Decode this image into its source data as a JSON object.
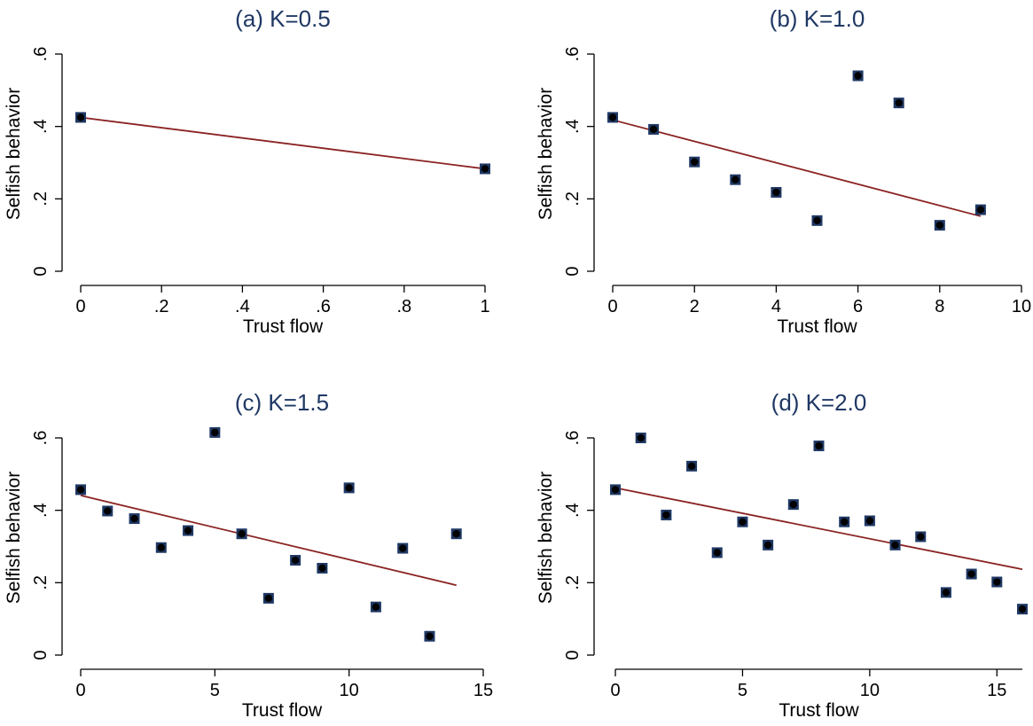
{
  "chart_data": [
    {
      "type": "scatter",
      "title": "(a) K=0.5",
      "xlabel": "Trust flow",
      "ylabel": "Selfish behavior",
      "xlim": [
        0,
        1
      ],
      "ylim": [
        0,
        0.6
      ],
      "xticks": [
        0,
        0.2,
        0.4,
        0.6,
        0.8,
        1
      ],
      "xtick_labels": [
        "0",
        ".2",
        ".4",
        ".6",
        ".8",
        "1"
      ],
      "yticks": [
        0,
        0.2,
        0.4,
        0.6
      ],
      "ytick_labels": [
        "0",
        ".2",
        ".4",
        ".6"
      ],
      "grid": false,
      "points": [
        [
          0,
          0.425
        ],
        [
          1,
          0.283
        ]
      ],
      "fit_line": [
        [
          0,
          0.425
        ],
        [
          1,
          0.283
        ]
      ]
    },
    {
      "type": "scatter",
      "title": "(b) K=1.0",
      "xlabel": "Trust flow",
      "ylabel": "Selfish behavior",
      "xlim": [
        0,
        10
      ],
      "ylim": [
        0,
        0.6
      ],
      "xticks": [
        0,
        2,
        4,
        6,
        8,
        10
      ],
      "xtick_labels": [
        "0",
        "2",
        "4",
        "6",
        "8",
        "10"
      ],
      "yticks": [
        0,
        0.2,
        0.4,
        0.6
      ],
      "ytick_labels": [
        "0",
        ".2",
        ".4",
        ".6"
      ],
      "grid": false,
      "points": [
        [
          0,
          0.425
        ],
        [
          1,
          0.392
        ],
        [
          2,
          0.302
        ],
        [
          3,
          0.253
        ],
        [
          4,
          0.218
        ],
        [
          5,
          0.14
        ],
        [
          6,
          0.54
        ],
        [
          7,
          0.465
        ],
        [
          8,
          0.127
        ],
        [
          9,
          0.17
        ]
      ],
      "fit_line": [
        [
          0,
          0.418
        ],
        [
          9,
          0.152
        ]
      ]
    },
    {
      "type": "scatter",
      "title": "(c) K=1.5",
      "xlabel": "Trust flow",
      "ylabel": "Selfish behavior",
      "xlim": [
        0,
        15
      ],
      "ylim": [
        0,
        0.6
      ],
      "xticks": [
        0,
        5,
        10,
        15
      ],
      "xtick_labels": [
        "0",
        "5",
        "10",
        "15"
      ],
      "yticks": [
        0,
        0.2,
        0.4,
        0.6
      ],
      "ytick_labels": [
        "0",
        ".2",
        ".4",
        ".6"
      ],
      "grid": false,
      "points": [
        [
          0,
          0.457
        ],
        [
          1,
          0.398
        ],
        [
          2,
          0.377
        ],
        [
          3,
          0.297
        ],
        [
          4,
          0.344
        ],
        [
          5,
          0.615
        ],
        [
          6,
          0.335
        ],
        [
          7,
          0.157
        ],
        [
          8,
          0.262
        ],
        [
          9,
          0.24
        ],
        [
          10,
          0.462
        ],
        [
          11,
          0.133
        ],
        [
          12,
          0.295
        ],
        [
          13,
          0.052
        ],
        [
          14,
          0.335
        ]
      ],
      "fit_line": [
        [
          0,
          0.441
        ],
        [
          14,
          0.193
        ]
      ]
    },
    {
      "type": "scatter",
      "title": "(d) K=2.0",
      "xlabel": "Trust flow",
      "ylabel": "Selfish behavior",
      "xlim": [
        0,
        16
      ],
      "ylim": [
        0,
        0.6
      ],
      "xticks": [
        0,
        5,
        10,
        15
      ],
      "xtick_labels": [
        "0",
        "5",
        "10",
        "15"
      ],
      "yticks": [
        0,
        0.2,
        0.4,
        0.6
      ],
      "ytick_labels": [
        "0",
        ".2",
        ".4",
        ".6"
      ],
      "grid": false,
      "points": [
        [
          0,
          0.457
        ],
        [
          1,
          0.6
        ],
        [
          2,
          0.387
        ],
        [
          3,
          0.522
        ],
        [
          4,
          0.283
        ],
        [
          5,
          0.368
        ],
        [
          6,
          0.304
        ],
        [
          7,
          0.416
        ],
        [
          8,
          0.578
        ],
        [
          9,
          0.368
        ],
        [
          10,
          0.371
        ],
        [
          11,
          0.304
        ],
        [
          12,
          0.327
        ],
        [
          13,
          0.173
        ],
        [
          14,
          0.224
        ],
        [
          15,
          0.202
        ],
        [
          16,
          0.127
        ]
      ],
      "fit_line": [
        [
          0,
          0.462
        ],
        [
          16,
          0.237
        ]
      ]
    }
  ],
  "colors": {
    "title": "#1f3864",
    "marker_fill": "#1f3864",
    "marker_dot": "#000000",
    "fit_line": "#8b2323",
    "axis": "#000000"
  }
}
